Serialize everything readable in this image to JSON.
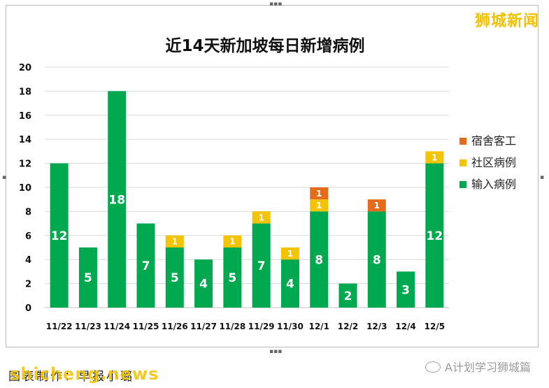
{
  "brand_top": "狮城新闻",
  "footer": {
    "credit": "图表制作：早报小璐",
    "watermark": "shicheng.news",
    "wechat": "A计划学习狮城篇"
  },
  "chart_data": {
    "type": "bar",
    "stacked": true,
    "title": "近14天新加坡每日新增病例",
    "categories": [
      "11/22",
      "11/23",
      "11/24",
      "11/25",
      "11/26",
      "11/27",
      "11/28",
      "11/29",
      "11/30",
      "12/1",
      "12/2",
      "12/3",
      "12/4",
      "12/5"
    ],
    "series": [
      {
        "name": "输入病例",
        "color": "#00a94f",
        "values": [
          12,
          5,
          18,
          7,
          5,
          4,
          5,
          7,
          4,
          8,
          2,
          8,
          3,
          12
        ]
      },
      {
        "name": "社区病例",
        "color": "#f5c400",
        "values": [
          0,
          0,
          0,
          0,
          1,
          0,
          1,
          1,
          1,
          1,
          0,
          0,
          0,
          1
        ]
      },
      {
        "name": "宿舍客工",
        "color": "#e56c1c",
        "values": [
          0,
          0,
          0,
          0,
          0,
          0,
          0,
          0,
          0,
          1,
          0,
          1,
          0,
          0
        ]
      }
    ],
    "yticks": [
      "0",
      "2",
      "4",
      "6",
      "8",
      "10",
      "12",
      "14",
      "16",
      "18",
      "20"
    ],
    "ylim": [
      0,
      20
    ],
    "grid": true,
    "legend_position": "right"
  }
}
